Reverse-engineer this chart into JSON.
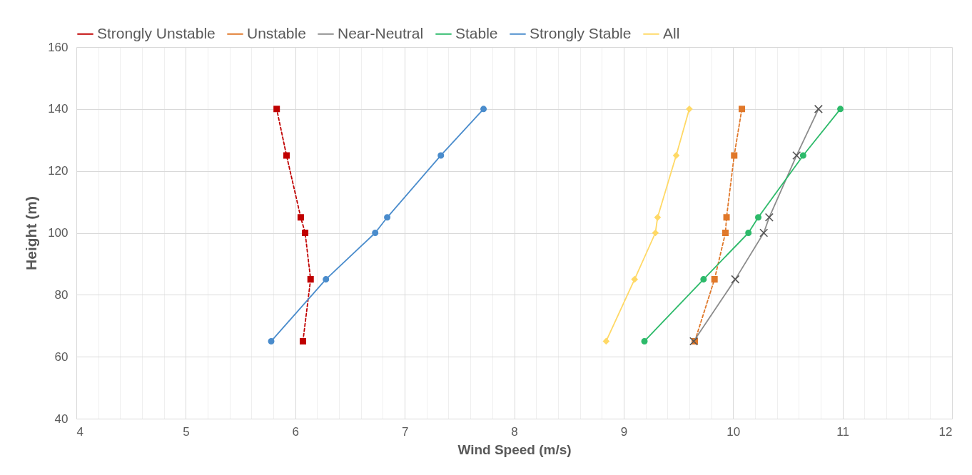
{
  "chart_data": {
    "type": "line",
    "xlabel": "Wind Speed (m/s)",
    "ylabel": "Height (m)",
    "xlim": [
      4,
      12
    ],
    "ylim": [
      40,
      160
    ],
    "xticks": [
      4,
      {
        "value": 4.2,
        "label": null
      },
      {
        "value": 4.4,
        "label": null
      },
      {
        "value": 4.6,
        "label": null
      },
      {
        "value": 4.8,
        "label": null
      },
      5,
      {
        "value": 5.2,
        "label": null
      },
      {
        "value": 5.4,
        "label": null
      },
      {
        "value": 5.6,
        "label": null
      },
      {
        "value": 5.8,
        "label": null
      },
      6,
      {
        "value": 6.2,
        "label": null
      },
      {
        "value": 6.4,
        "label": null
      },
      {
        "value": 6.6,
        "label": null
      },
      {
        "value": 6.8,
        "label": null
      },
      7,
      {
        "value": 7.2,
        "label": null
      },
      {
        "value": 7.4,
        "label": null
      },
      {
        "value": 7.6,
        "label": null
      },
      {
        "value": 7.8,
        "label": null
      },
      8,
      {
        "value": 8.2,
        "label": null
      },
      {
        "value": 8.4,
        "label": null
      },
      {
        "value": 8.6,
        "label": null
      },
      {
        "value": 8.8,
        "label": null
      },
      9,
      {
        "value": 9.2,
        "label": null
      },
      {
        "value": 9.4,
        "label": null
      },
      {
        "value": 9.6,
        "label": null
      },
      {
        "value": 9.8,
        "label": null
      },
      10,
      {
        "value": 10.2,
        "label": null
      },
      {
        "value": 10.4,
        "label": null
      },
      {
        "value": 10.6,
        "label": null
      },
      {
        "value": 10.8,
        "label": null
      },
      11,
      {
        "value": 11.2,
        "label": null
      },
      {
        "value": 11.4,
        "label": null
      },
      {
        "value": 11.6,
        "label": null
      },
      {
        "value": 11.8,
        "label": null
      },
      12
    ],
    "yticks": [
      40,
      60,
      80,
      100,
      120,
      140,
      160
    ],
    "grid": true,
    "legend": "top",
    "series": [
      {
        "name": "Strongly Unstable",
        "color": "#c00000",
        "marker": "square",
        "line_style": "dashed",
        "x": [
          6.07,
          6.14,
          6.09,
          6.05,
          5.92,
          5.83
        ],
        "values": [
          65,
          85,
          100,
          105,
          125,
          140
        ]
      },
      {
        "name": "Unstable",
        "color": "#e0782a",
        "marker": "square",
        "line_style": "dashed",
        "x": [
          9.65,
          9.83,
          9.93,
          9.94,
          10.01,
          10.08
        ],
        "values": [
          65,
          85,
          100,
          105,
          125,
          140
        ]
      },
      {
        "name": "Near-Neutral",
        "color": "#8c8c8c",
        "marker": "cross",
        "line_style": "solid",
        "x": [
          9.64,
          10.02,
          10.28,
          10.33,
          10.58,
          10.78
        ],
        "values": [
          65,
          85,
          100,
          105,
          125,
          140
        ]
      },
      {
        "name": "Stable",
        "color": "#2dba6a",
        "marker": "circle",
        "line_style": "solid",
        "x": [
          9.19,
          9.73,
          10.14,
          10.23,
          10.64,
          10.98
        ],
        "values": [
          65,
          85,
          100,
          105,
          125,
          140
        ]
      },
      {
        "name": "Strongly Stable",
        "color": "#4a8ccc",
        "marker": "circle",
        "line_style": "solid",
        "x": [
          5.78,
          6.28,
          6.73,
          6.84,
          7.33,
          7.72
        ],
        "values": [
          65,
          85,
          100,
          105,
          125,
          140
        ]
      },
      {
        "name": "All",
        "color": "#ffd966",
        "marker": "diamond",
        "line_style": "solid",
        "x": [
          8.84,
          9.1,
          9.29,
          9.31,
          9.48,
          9.6
        ],
        "values": [
          65,
          85,
          100,
          105,
          125,
          140
        ]
      }
    ]
  }
}
